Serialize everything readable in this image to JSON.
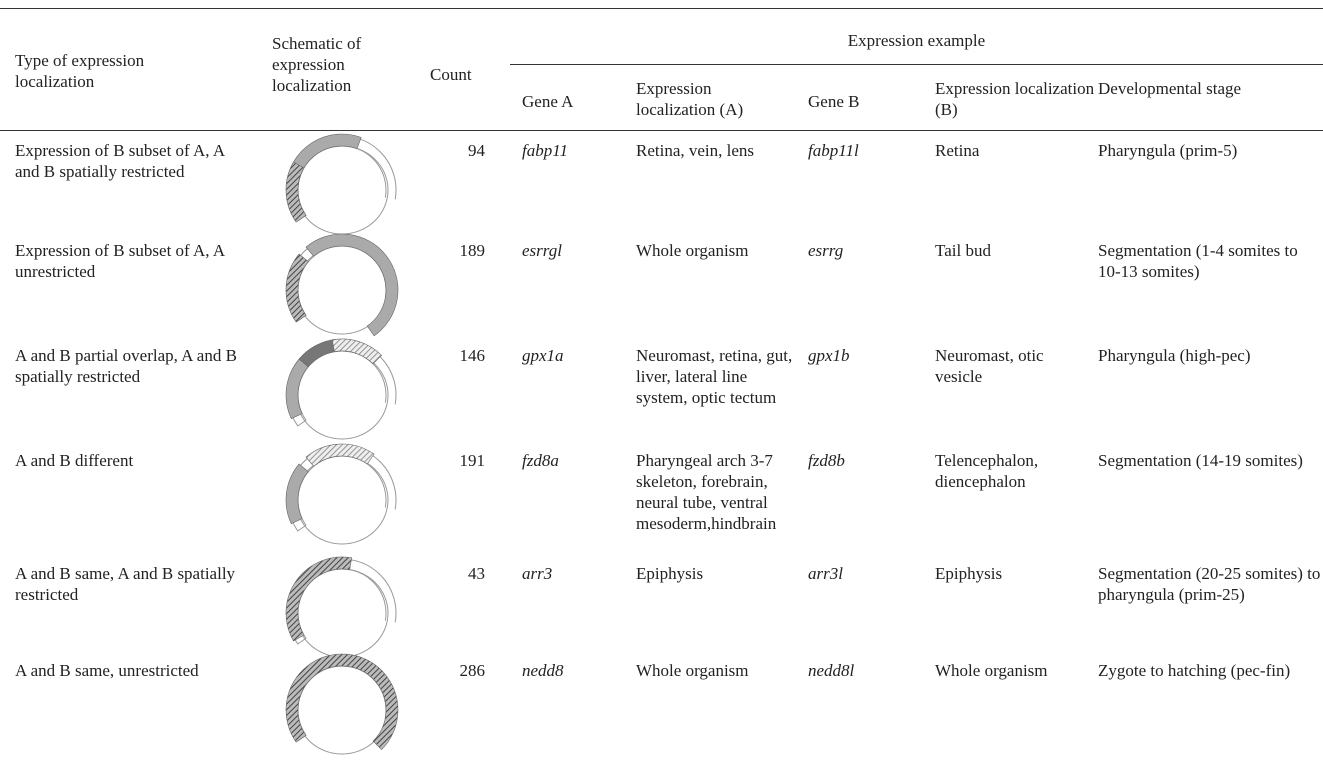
{
  "header": {
    "type": "Type of expression localization",
    "schematic": "Schematic of expression localization",
    "count": "Count",
    "example": "Expression example",
    "gene_a": "Gene A",
    "loc_a": "Expression localization (A)",
    "gene_b": "Gene B",
    "loc_b": "Expression localization (B)",
    "stage": "Developmental stage"
  },
  "table": {
    "rows": [
      [
        "Expression of B subset of A, A and B spatially restricted",
        94,
        "fabp11",
        "Retina, vein, lens",
        "fabp11l",
        "Retina",
        "Pharyngula (prim-5)"
      ],
      [
        "Expression of B subset of A, A unrestricted",
        189,
        "esrrgl",
        "Whole organism",
        "esrrg",
        "Tail bud",
        "Segmentation (1-4 somites to 10-13 somites)"
      ],
      [
        "A and B partial overlap, A and B spatially restricted",
        146,
        "gpx1a",
        "Neuromast, retina, gut, liver, lateral line system, optic tectum",
        "gpx1b",
        "Neuromast, otic vesicle",
        "Pharyngula (high-pec)"
      ],
      [
        "A and B different",
        191,
        "fzd8a",
        "Pharyngeal arch 3-7 skeleton, forebrain, neural tube, ventral mesoderm,hindbrain",
        "fzd8b",
        "Telencephalon, diencephalon",
        "Segmentation (14-19 somites)"
      ],
      [
        "A and B same, A and B spatially restricted",
        43,
        "arr3",
        "Epiphysis",
        "arr3l",
        "Epiphysis",
        "Segmentation (20-25 somites) to pharyngula (prim-25)"
      ],
      [
        "A and B same, unrestricted",
        286,
        "nedd8",
        "Whole organism",
        "nedd8l",
        "Whole organism",
        "Zygote to hatching (pec-fin)"
      ]
    ]
  }
}
